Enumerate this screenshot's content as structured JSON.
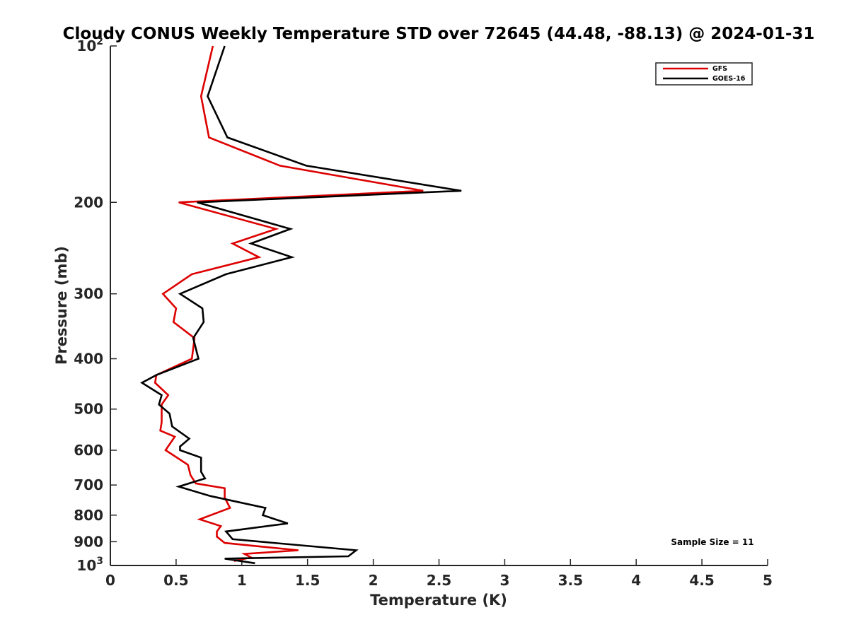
{
  "chart_data": {
    "type": "line",
    "title": "Cloudy CONUS Weekly Temperature STD over 72645 (44.48, -88.13) @ 2024-01-31",
    "xlabel": "Temperature (K)",
    "ylabel": "Pressure (mb)",
    "xlim": [
      0,
      5
    ],
    "ylim": [
      100,
      1000
    ],
    "y_scale": "log",
    "y_reversed": true,
    "grid": false,
    "legend_position": "top-right",
    "x_ticks": [
      "0",
      "0.5",
      "1",
      "1.5",
      "2",
      "2.5",
      "3",
      "3.5",
      "4",
      "4.5",
      "5"
    ],
    "y_ticks": [
      {
        "value": 100,
        "label": "10",
        "exp": "2"
      },
      {
        "value": 200,
        "label": "200",
        "exp": ""
      },
      {
        "value": 300,
        "label": "300",
        "exp": ""
      },
      {
        "value": 400,
        "label": "400",
        "exp": ""
      },
      {
        "value": 500,
        "label": "500",
        "exp": ""
      },
      {
        "value": 600,
        "label": "600",
        "exp": ""
      },
      {
        "value": 700,
        "label": "700",
        "exp": ""
      },
      {
        "value": 800,
        "label": "800",
        "exp": ""
      },
      {
        "value": 900,
        "label": "900",
        "exp": ""
      },
      {
        "value": 1000,
        "label": "10",
        "exp": "3"
      }
    ],
    "annotation": "Sample Size = 11",
    "series": [
      {
        "name": "GFS",
        "color": "#dd0000",
        "points": [
          [
            0.78,
            100
          ],
          [
            0.69,
            125
          ],
          [
            0.75,
            150
          ],
          [
            1.29,
            170
          ],
          [
            2.38,
            190
          ],
          [
            0.52,
            200
          ],
          [
            1.26,
            225
          ],
          [
            0.93,
            240
          ],
          [
            1.13,
            255
          ],
          [
            0.62,
            275
          ],
          [
            0.4,
            300
          ],
          [
            0.5,
            320
          ],
          [
            0.48,
            340
          ],
          [
            0.64,
            365
          ],
          [
            0.62,
            400
          ],
          [
            0.35,
            430
          ],
          [
            0.34,
            445
          ],
          [
            0.44,
            470
          ],
          [
            0.39,
            490
          ],
          [
            0.39,
            530
          ],
          [
            0.38,
            550
          ],
          [
            0.49,
            565
          ],
          [
            0.42,
            600
          ],
          [
            0.59,
            640
          ],
          [
            0.61,
            670
          ],
          [
            0.65,
            695
          ],
          [
            0.87,
            710
          ],
          [
            0.87,
            740
          ],
          [
            0.91,
            775
          ],
          [
            0.68,
            815
          ],
          [
            0.84,
            840
          ],
          [
            0.81,
            860
          ],
          [
            0.81,
            880
          ],
          [
            0.87,
            905
          ],
          [
            1.43,
            935
          ],
          [
            1.02,
            950
          ],
          [
            1.07,
            965
          ],
          [
            0.94,
            980
          ]
        ]
      },
      {
        "name": "GOES-16",
        "color": "#000000",
        "points": [
          [
            0.87,
            100
          ],
          [
            0.74,
            125
          ],
          [
            0.89,
            150
          ],
          [
            1.49,
            170
          ],
          [
            2.67,
            190
          ],
          [
            0.66,
            200
          ],
          [
            1.37,
            225
          ],
          [
            1.07,
            240
          ],
          [
            1.38,
            255
          ],
          [
            0.88,
            275
          ],
          [
            0.53,
            300
          ],
          [
            0.7,
            320
          ],
          [
            0.71,
            340
          ],
          [
            0.63,
            365
          ],
          [
            0.67,
            400
          ],
          [
            0.35,
            430
          ],
          [
            0.24,
            445
          ],
          [
            0.39,
            470
          ],
          [
            0.37,
            490
          ],
          [
            0.45,
            510
          ],
          [
            0.47,
            540
          ],
          [
            0.6,
            570
          ],
          [
            0.53,
            590
          ],
          [
            0.53,
            600
          ],
          [
            0.69,
            620
          ],
          [
            0.69,
            660
          ],
          [
            0.72,
            680
          ],
          [
            0.52,
            705
          ],
          [
            0.76,
            735
          ],
          [
            1.18,
            775
          ],
          [
            1.16,
            800
          ],
          [
            1.35,
            830
          ],
          [
            0.88,
            860
          ],
          [
            0.93,
            890
          ],
          [
            1.87,
            935
          ],
          [
            1.81,
            960
          ],
          [
            0.87,
            970
          ],
          [
            1.1,
            990
          ]
        ]
      }
    ]
  }
}
